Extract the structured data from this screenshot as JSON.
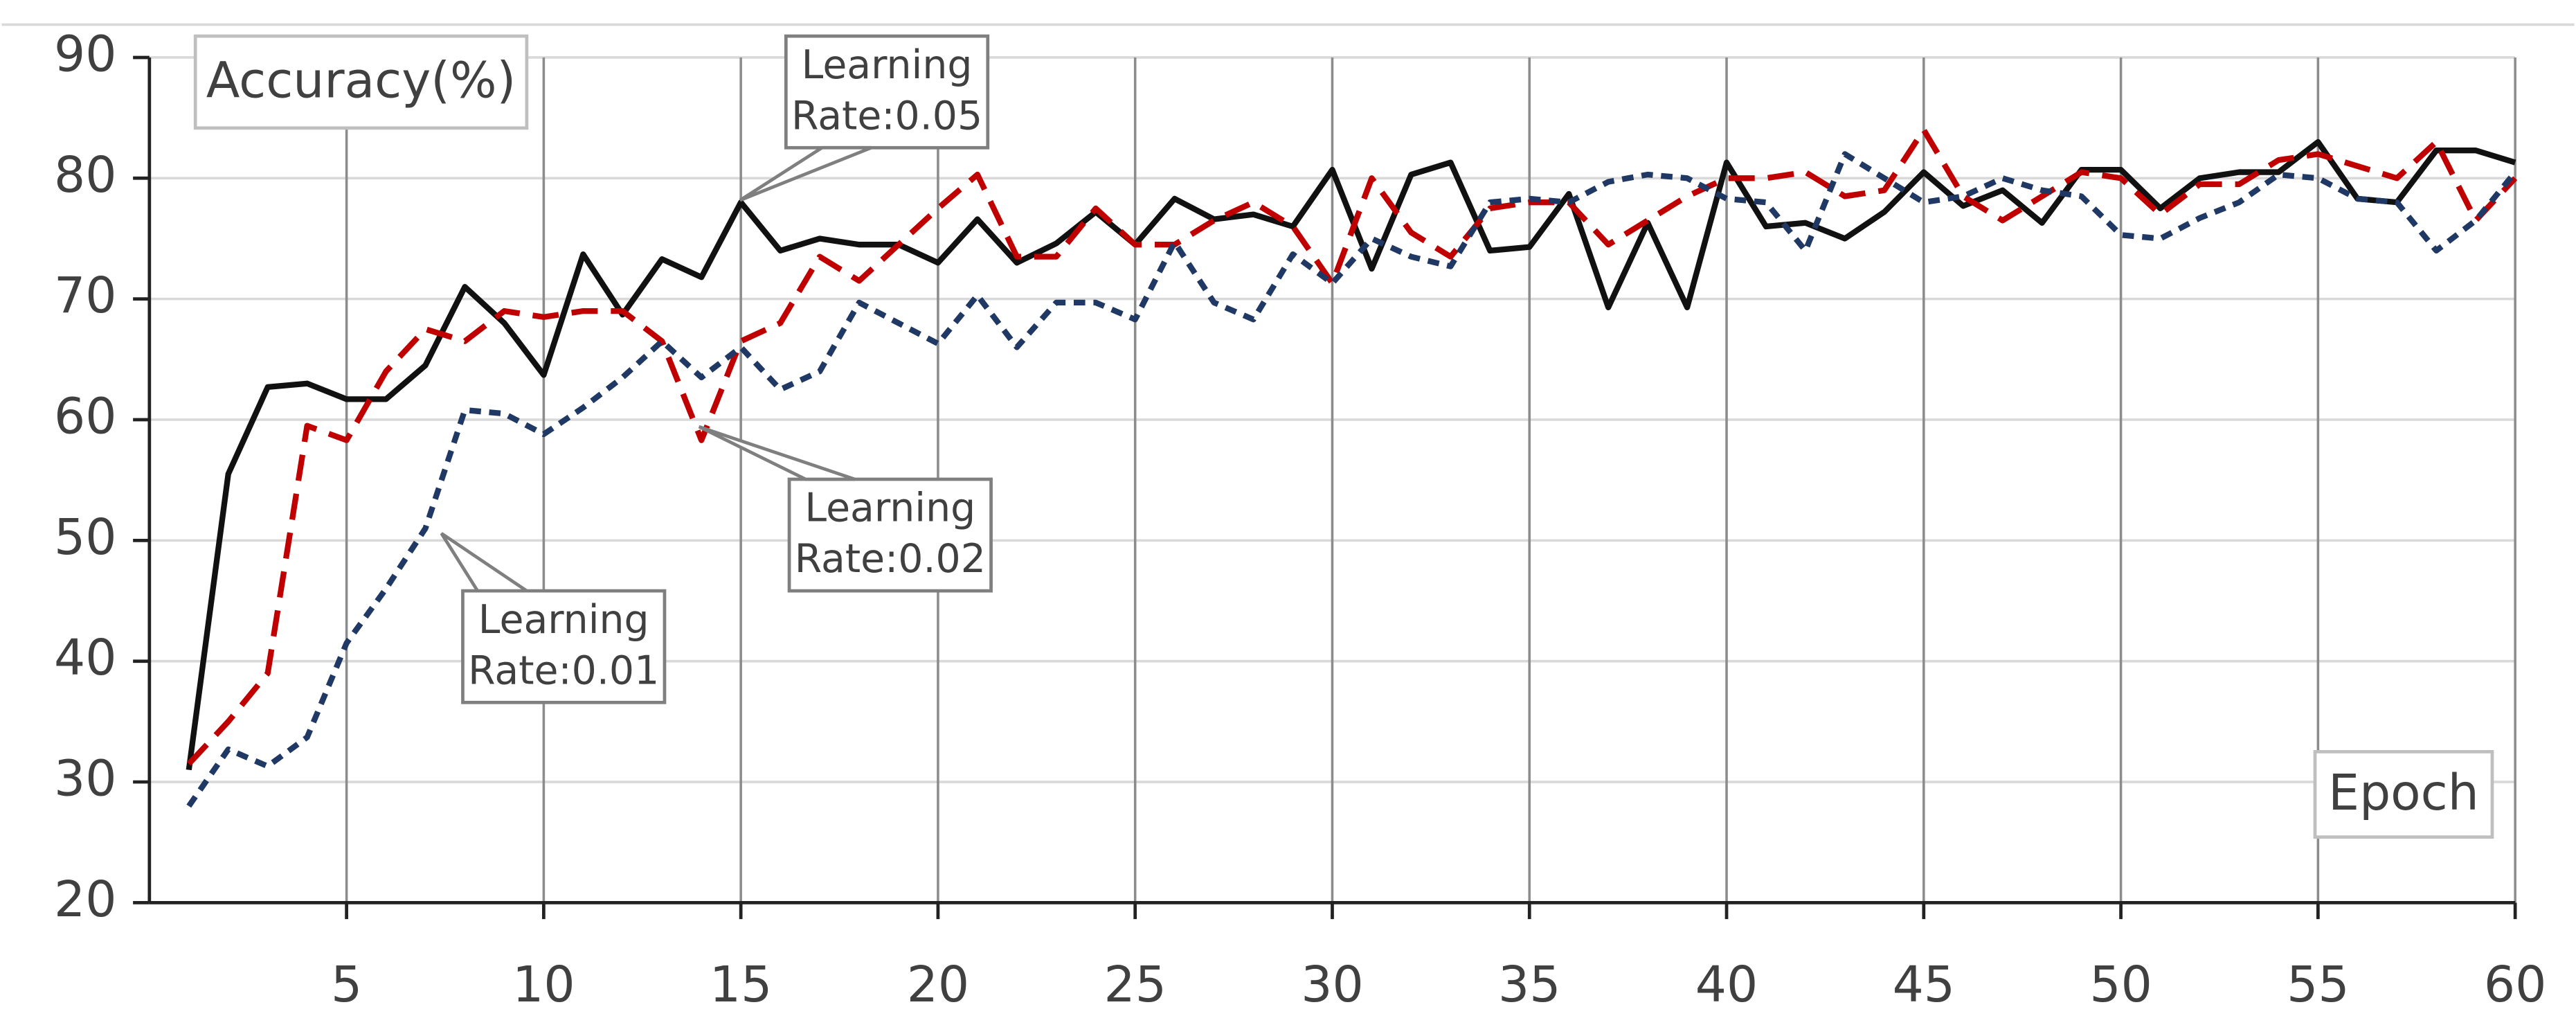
{
  "chart_data": {
    "type": "line",
    "y_label": "Accuracy(%)",
    "x_label": "Epoch",
    "x": [
      1,
      2,
      3,
      4,
      5,
      6,
      7,
      8,
      9,
      10,
      11,
      12,
      13,
      14,
      15,
      16,
      17,
      18,
      19,
      20,
      21,
      22,
      23,
      24,
      25,
      26,
      27,
      28,
      29,
      30,
      31,
      32,
      33,
      34,
      35,
      36,
      37,
      38,
      39,
      40,
      41,
      42,
      43,
      44,
      45,
      46,
      47,
      48,
      49,
      50,
      51,
      52,
      53,
      54,
      55,
      56,
      57,
      58,
      59,
      60
    ],
    "xlim": [
      0,
      60
    ],
    "xticks": [
      5,
      10,
      15,
      20,
      25,
      30,
      35,
      40,
      45,
      50,
      55,
      60
    ],
    "ylim": [
      20,
      90
    ],
    "yticks": [
      20,
      30,
      40,
      50,
      60,
      70,
      80,
      90
    ],
    "grid": true,
    "series": [
      {
        "name_lines": [
          "Learning",
          "Rate:0.05"
        ],
        "color": "#111111",
        "dash": "solid",
        "values": [
          31,
          55.5,
          62.7,
          63,
          61.7,
          61.7,
          64.5,
          71,
          68,
          63.7,
          73.7,
          68.7,
          73.3,
          71.8,
          78,
          74,
          75,
          74.5,
          74.5,
          73,
          76.6,
          73,
          74.6,
          77.2,
          74.5,
          78.3,
          76.6,
          77,
          76,
          80.7,
          72.5,
          80.3,
          81.3,
          74,
          74.3,
          78.7,
          69.3,
          76.3,
          69.3,
          81.3,
          76,
          76.3,
          75,
          77.2,
          80.5,
          77.7,
          79,
          76.3,
          80.7,
          80.7,
          77.5,
          80,
          80.5,
          80.5,
          83,
          78.3,
          78,
          82.3,
          82.3,
          81.3
        ]
      },
      {
        "name_lines": [
          "Learning",
          "Rate:0.02"
        ],
        "color": "#c00000",
        "dash": "long",
        "values": [
          31.5,
          35,
          39,
          59.5,
          58.3,
          64,
          67.5,
          66.5,
          69,
          68.5,
          69,
          69,
          66.5,
          58.3,
          66.5,
          68,
          73.5,
          71.5,
          74.5,
          77.5,
          80.3,
          73.5,
          73.5,
          77.5,
          74.5,
          74.5,
          76.5,
          78,
          76,
          71.3,
          80,
          75.5,
          73.5,
          77.5,
          78,
          78,
          74.5,
          76.5,
          78.5,
          80,
          80,
          80.5,
          78.5,
          79,
          84,
          78.5,
          76.5,
          78.5,
          80.5,
          80,
          77,
          79.5,
          79.5,
          81.5,
          82,
          81,
          80,
          83,
          76.5,
          80
        ]
      },
      {
        "name_lines": [
          "Learning",
          "Rate:0.01"
        ],
        "color": "#1f3864",
        "dash": "short",
        "values": [
          28,
          32.7,
          31.3,
          33.7,
          41.5,
          46,
          51,
          60.8,
          60.5,
          58.8,
          61,
          63.5,
          66.5,
          63.5,
          66,
          62.5,
          64,
          69.7,
          68,
          66.3,
          70.3,
          66,
          69.7,
          69.7,
          68.3,
          74.7,
          69.7,
          68.3,
          73.7,
          71.3,
          75,
          73.5,
          72.7,
          78,
          78.3,
          78,
          79.7,
          80.3,
          80,
          78.3,
          78,
          74,
          82,
          80,
          78,
          78.5,
          80,
          79,
          78.5,
          75.3,
          75,
          76.7,
          78,
          80.3,
          80,
          78.3,
          78,
          74,
          76.5,
          80.5
        ]
      }
    ]
  }
}
